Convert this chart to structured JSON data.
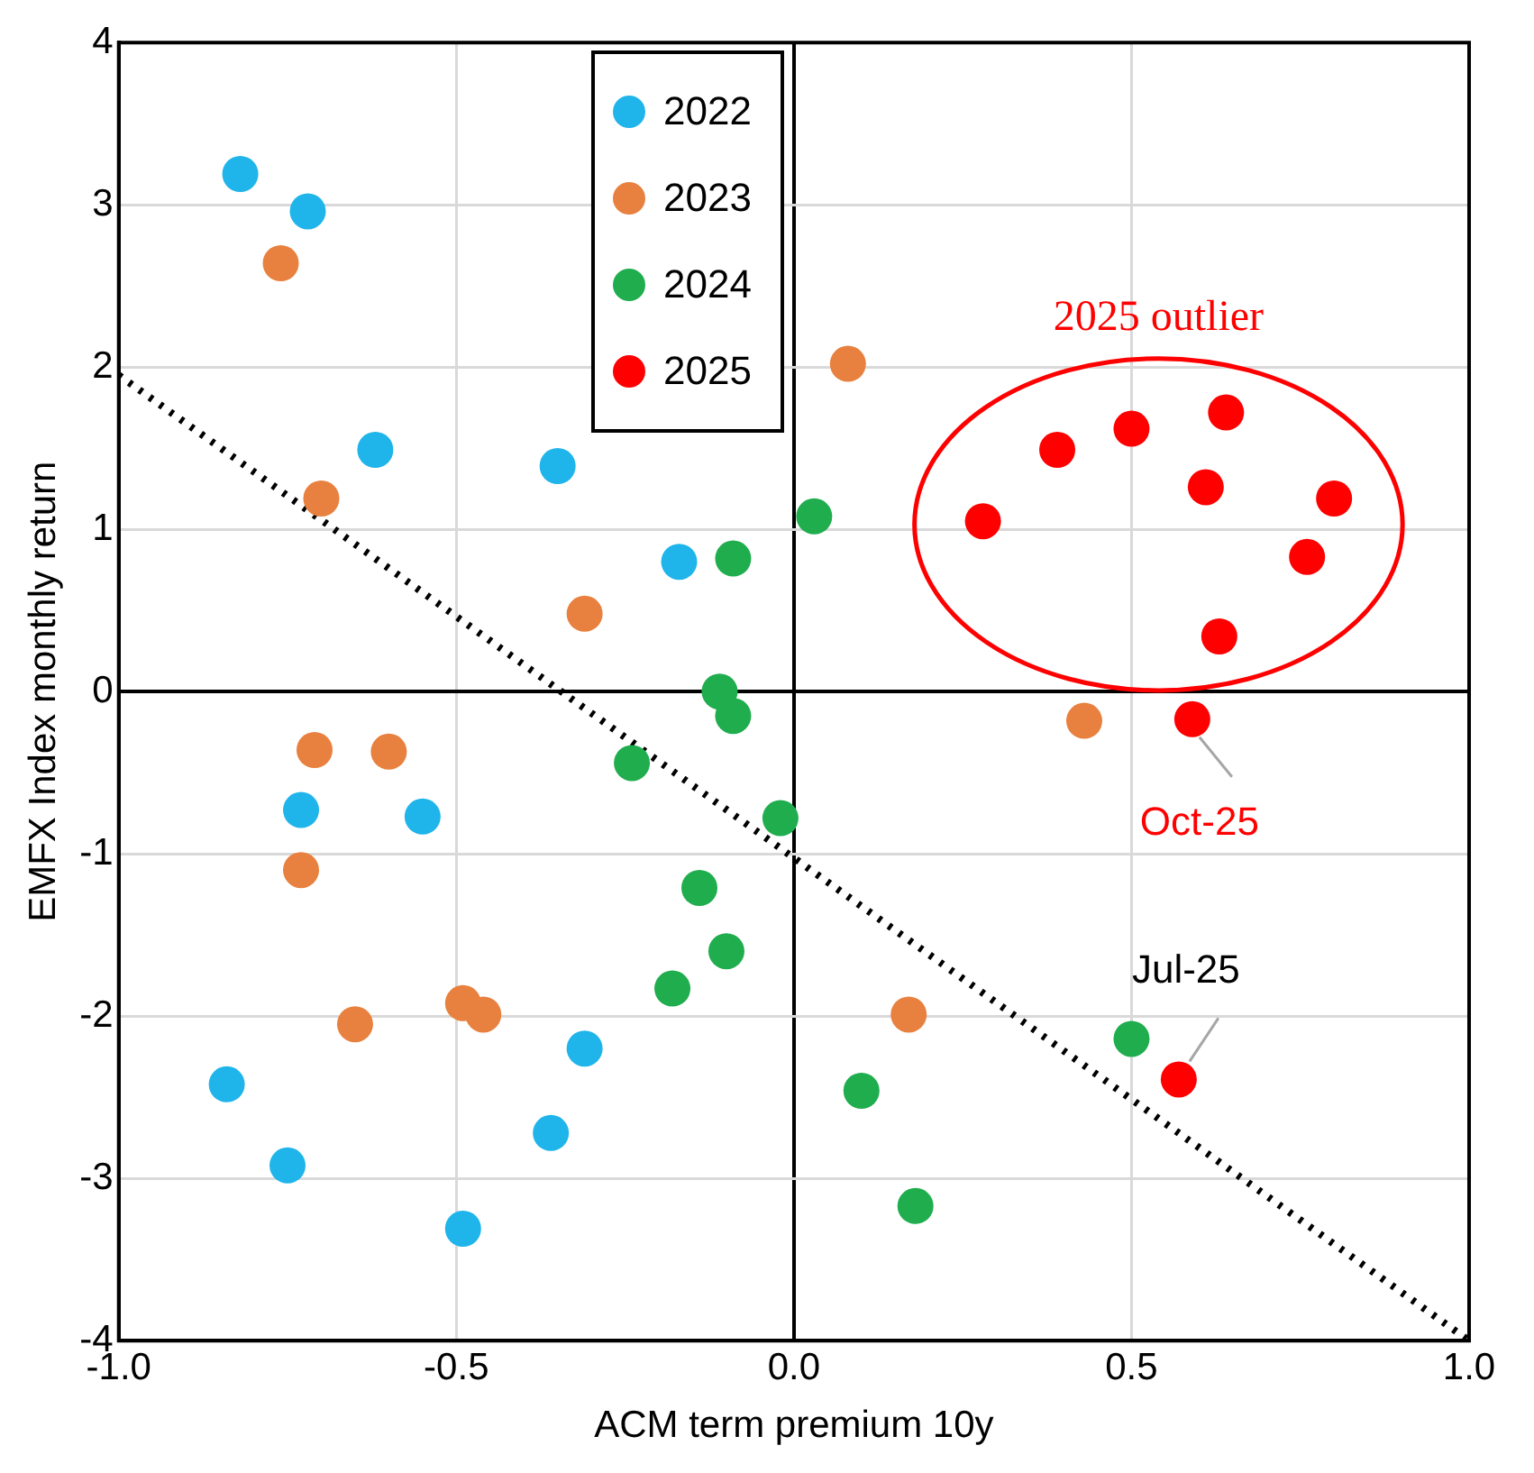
{
  "chart_data": {
    "type": "scatter",
    "xlabel": "ACM term premium 10y",
    "ylabel": "EMFX Index monthly return",
    "xlim": [
      -1,
      1
    ],
    "ylim": [
      -4,
      4
    ],
    "xticks": [
      {
        "value": -1,
        "label": "-1.0"
      },
      {
        "value": -0.5,
        "label": "-0.5"
      },
      {
        "value": 0,
        "label": "0.0"
      },
      {
        "value": 0.5,
        "label": "0.5"
      },
      {
        "value": 1,
        "label": "1.0"
      }
    ],
    "yticks": [
      -4,
      -3,
      -2,
      -1,
      0,
      1,
      2,
      3,
      4
    ],
    "grid": true,
    "legend": "top left",
    "marker": "circle",
    "series": [
      {
        "name": "2022",
        "color": "#1fb5ea",
        "x": [
          -0.82,
          -0.72,
          -0.62,
          -0.35,
          -0.17,
          -0.73,
          -0.55,
          -0.31,
          -0.84,
          -0.75,
          -0.36,
          -0.49
        ],
        "values": [
          3.19,
          2.96,
          1.49,
          1.39,
          0.8,
          -0.73,
          -0.77,
          -2.2,
          -2.42,
          -2.92,
          -2.72,
          -3.31
        ]
      },
      {
        "name": "2023",
        "color": "#e8813f",
        "x": [
          -0.76,
          0.08,
          -0.7,
          -0.31,
          -0.71,
          -0.6,
          -0.73,
          0.43,
          -0.65,
          -0.49,
          -0.46,
          0.17
        ],
        "values": [
          2.64,
          2.02,
          1.19,
          0.48,
          -0.36,
          -0.37,
          -1.1,
          -0.18,
          -2.05,
          -1.92,
          -1.99,
          -1.99
        ]
      },
      {
        "name": "2024",
        "color": "#1fad4e",
        "x": [
          0.03,
          -0.09,
          -0.11,
          -0.09,
          -0.24,
          -0.02,
          -0.14,
          -0.1,
          -0.18,
          0.5,
          0.1,
          0.18
        ],
        "values": [
          1.08,
          0.82,
          0,
          -0.15,
          -0.44,
          -0.78,
          -1.21,
          -1.6,
          -1.83,
          -2.14,
          -2.46,
          -3.17
        ]
      },
      {
        "name": "2025",
        "color": "#ff0000",
        "x": [
          0.28,
          0.39,
          0.5,
          0.64,
          0.61,
          0.8,
          0.76,
          0.63,
          0.59,
          0.57
        ],
        "values": [
          1.05,
          1.49,
          1.62,
          1.72,
          1.26,
          1.19,
          0.83,
          0.34,
          -0.17,
          -2.39
        ]
      },
      {
        "type": "line",
        "color": "#000000",
        "line_style": "dotted",
        "marker": "none",
        "x": [
          -1,
          1
        ],
        "values": [
          1.95,
          -4
        ]
      }
    ],
    "annotations": [
      "2025 outlier",
      {
        "text": "Oct-25",
        "x": 0.59,
        "y": -0.17
      },
      {
        "text": "Jul-25",
        "x": 0.57,
        "y": -2.39
      }
    ]
  }
}
